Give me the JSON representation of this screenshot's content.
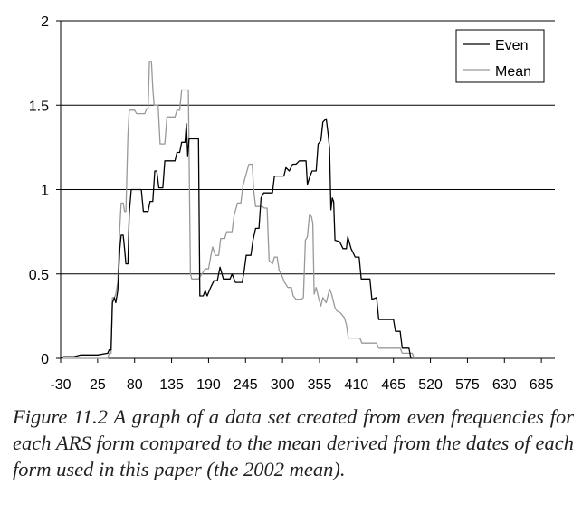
{
  "caption": "Figure 11.2 A graph of a data set created from even frequencies for each ARS form compared to the mean derived from the dates of each form used in this paper (the 2002 mean).",
  "chart_data": {
    "type": "line",
    "title": "",
    "xlabel": "",
    "ylabel": "",
    "xlim": [
      -30,
      705
    ],
    "ylim": [
      0,
      2
    ],
    "y_ticks": [
      0,
      0.5,
      1,
      1.5,
      2
    ],
    "y_tick_labels": [
      "0",
      "0.5",
      "1",
      "1.5",
      "2"
    ],
    "x_ticks": [
      -30,
      25,
      80,
      135,
      190,
      245,
      300,
      355,
      410,
      465,
      520,
      575,
      630,
      685
    ],
    "x_tick_labels": [
      "-30",
      "25",
      "80",
      "135",
      "190",
      "245",
      "300",
      "355",
      "410",
      "465",
      "520",
      "575",
      "630",
      "685"
    ],
    "grid": "horizontal",
    "legend_position": "top-right",
    "series": [
      {
        "name": "Even",
        "color": "#000000",
        "points": [
          [
            -30,
            0
          ],
          [
            -25,
            0.01
          ],
          [
            -10,
            0.01
          ],
          [
            0,
            0.02
          ],
          [
            25,
            0.02
          ],
          [
            40,
            0.03
          ],
          [
            42,
            0.05
          ],
          [
            45,
            0.05
          ],
          [
            47,
            0.33
          ],
          [
            50,
            0.36
          ],
          [
            52,
            0.33
          ],
          [
            55,
            0.4
          ],
          [
            58,
            0.65
          ],
          [
            60,
            0.73
          ],
          [
            63,
            0.73
          ],
          [
            65,
            0.65
          ],
          [
            67,
            0.56
          ],
          [
            70,
            0.56
          ],
          [
            72,
            0.86
          ],
          [
            75,
            1.0
          ],
          [
            90,
            1.0
          ],
          [
            93,
            0.87
          ],
          [
            100,
            0.87
          ],
          [
            103,
            0.93
          ],
          [
            107,
            0.93
          ],
          [
            110,
            1.11
          ],
          [
            113,
            1.11
          ],
          [
            116,
            1.01
          ],
          [
            122,
            1.01
          ],
          [
            125,
            1.17
          ],
          [
            140,
            1.17
          ],
          [
            143,
            1.22
          ],
          [
            147,
            1.22
          ],
          [
            150,
            1.28
          ],
          [
            155,
            1.28
          ],
          [
            157,
            1.39
          ],
          [
            159,
            1.2
          ],
          [
            161,
            1.3
          ],
          [
            175,
            1.3
          ],
          [
            177,
            0.37
          ],
          [
            182,
            0.37
          ],
          [
            185,
            0.4
          ],
          [
            188,
            0.37
          ],
          [
            193,
            0.42
          ],
          [
            198,
            0.46
          ],
          [
            203,
            0.46
          ],
          [
            207,
            0.54
          ],
          [
            212,
            0.47
          ],
          [
            222,
            0.47
          ],
          [
            225,
            0.5
          ],
          [
            230,
            0.45
          ],
          [
            240,
            0.45
          ],
          [
            243,
            0.52
          ],
          [
            246,
            0.61
          ],
          [
            253,
            0.61
          ],
          [
            256,
            0.7
          ],
          [
            260,
            0.77
          ],
          [
            265,
            0.77
          ],
          [
            268,
            0.95
          ],
          [
            272,
            0.98
          ],
          [
            285,
            0.98
          ],
          [
            288,
            1.08
          ],
          [
            302,
            1.08
          ],
          [
            305,
            1.13
          ],
          [
            310,
            1.11
          ],
          [
            315,
            1.15
          ],
          [
            320,
            1.15
          ],
          [
            325,
            1.17
          ],
          [
            335,
            1.17
          ],
          [
            337,
            1.03
          ],
          [
            340,
            1.07
          ],
          [
            344,
            1.11
          ],
          [
            350,
            1.11
          ],
          [
            353,
            1.27
          ],
          [
            357,
            1.29
          ],
          [
            360,
            1.4
          ],
          [
            365,
            1.42
          ],
          [
            368,
            1.32
          ],
          [
            370,
            1.24
          ],
          [
            372,
            0.88
          ],
          [
            374,
            0.95
          ],
          [
            376,
            0.93
          ],
          [
            378,
            0.7
          ],
          [
            385,
            0.69
          ],
          [
            390,
            0.65
          ],
          [
            395,
            0.65
          ],
          [
            397,
            0.72
          ],
          [
            402,
            0.65
          ],
          [
            408,
            0.6
          ],
          [
            414,
            0.6
          ],
          [
            417,
            0.47
          ],
          [
            430,
            0.47
          ],
          [
            433,
            0.35
          ],
          [
            440,
            0.36
          ],
          [
            443,
            0.23
          ],
          [
            465,
            0.23
          ],
          [
            468,
            0.16
          ],
          [
            475,
            0.16
          ],
          [
            478,
            0.06
          ],
          [
            488,
            0.06
          ],
          [
            491,
            0
          ]
        ]
      },
      {
        "name": "Mean",
        "color": "#999999",
        "points": [
          [
            -30,
            0
          ],
          [
            40,
            0
          ],
          [
            42,
            0.03
          ],
          [
            45,
            0.03
          ],
          [
            47,
            0.36
          ],
          [
            50,
            0.36
          ],
          [
            52,
            0.38
          ],
          [
            55,
            0.45
          ],
          [
            58,
            0.78
          ],
          [
            60,
            0.92
          ],
          [
            63,
            0.92
          ],
          [
            65,
            0.87
          ],
          [
            67,
            0.87
          ],
          [
            70,
            1.32
          ],
          [
            72,
            1.47
          ],
          [
            80,
            1.47
          ],
          [
            83,
            1.45
          ],
          [
            95,
            1.45
          ],
          [
            98,
            1.48
          ],
          [
            100,
            1.48
          ],
          [
            102,
            1.76
          ],
          [
            105,
            1.76
          ],
          [
            107,
            1.6
          ],
          [
            109,
            1.5
          ],
          [
            115,
            1.5
          ],
          [
            118,
            1.27
          ],
          [
            125,
            1.27
          ],
          [
            128,
            1.43
          ],
          [
            140,
            1.43
          ],
          [
            143,
            1.47
          ],
          [
            147,
            1.47
          ],
          [
            150,
            1.59
          ],
          [
            160,
            1.59
          ],
          [
            163,
            0.5
          ],
          [
            165,
            0.47
          ],
          [
            175,
            0.47
          ],
          [
            180,
            0.5
          ],
          [
            185,
            0.53
          ],
          [
            190,
            0.53
          ],
          [
            193,
            0.6
          ],
          [
            196,
            0.66
          ],
          [
            200,
            0.61
          ],
          [
            205,
            0.61
          ],
          [
            208,
            0.71
          ],
          [
            214,
            0.71
          ],
          [
            217,
            0.75
          ],
          [
            225,
            0.75
          ],
          [
            228,
            0.85
          ],
          [
            233,
            0.92
          ],
          [
            238,
            0.92
          ],
          [
            241,
            1.02
          ],
          [
            245,
            1.08
          ],
          [
            250,
            1.15
          ],
          [
            255,
            1.15
          ],
          [
            257,
            1.0
          ],
          [
            260,
            0.9
          ],
          [
            270,
            0.9
          ],
          [
            273,
            0.89
          ],
          [
            277,
            0.89
          ],
          [
            280,
            0.58
          ],
          [
            285,
            0.56
          ],
          [
            288,
            0.6
          ],
          [
            292,
            0.6
          ],
          [
            295,
            0.52
          ],
          [
            298,
            0.5
          ],
          [
            303,
            0.45
          ],
          [
            308,
            0.42
          ],
          [
            313,
            0.42
          ],
          [
            316,
            0.37
          ],
          [
            320,
            0.35
          ],
          [
            328,
            0.35
          ],
          [
            331,
            0.36
          ],
          [
            334,
            0.7
          ],
          [
            337,
            0.72
          ],
          [
            340,
            0.85
          ],
          [
            343,
            0.84
          ],
          [
            345,
            0.8
          ],
          [
            347,
            0.38
          ],
          [
            350,
            0.42
          ],
          [
            354,
            0.35
          ],
          [
            357,
            0.31
          ],
          [
            360,
            0.36
          ],
          [
            365,
            0.33
          ],
          [
            370,
            0.41
          ],
          [
            373,
            0.38
          ],
          [
            378,
            0.3
          ],
          [
            381,
            0.28
          ],
          [
            386,
            0.27
          ],
          [
            392,
            0.24
          ],
          [
            395,
            0.2
          ],
          [
            398,
            0.12
          ],
          [
            415,
            0.12
          ],
          [
            418,
            0.09
          ],
          [
            440,
            0.09
          ],
          [
            443,
            0.06
          ],
          [
            475,
            0.06
          ],
          [
            478,
            0.03
          ],
          [
            493,
            0.03
          ],
          [
            496,
            0
          ]
        ]
      }
    ]
  }
}
